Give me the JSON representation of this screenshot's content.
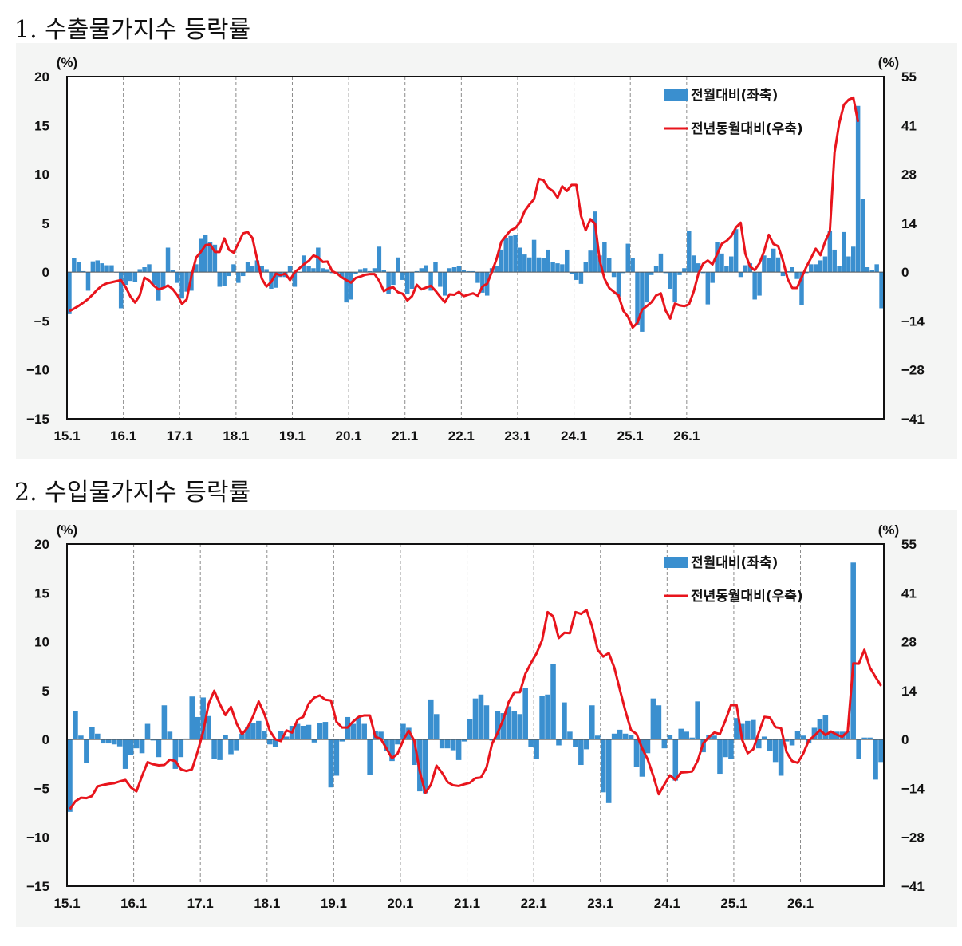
{
  "charts": [
    {
      "title": "1. 수출물가지수 등락률"
    },
    {
      "title": "2. 수입물가지수 등락률"
    }
  ],
  "chart_data": [
    {
      "type": "bar+line",
      "title": "1. 수출물가지수 등락률",
      "left_unit": "(%)",
      "right_unit": "(%)",
      "ylim_left": [
        -15,
        20
      ],
      "ylim_right": [
        -41,
        55
      ],
      "left_ticks": [
        "20",
        "15",
        "10",
        "5",
        "0",
        "-5",
        "-10",
        "-15"
      ],
      "right_ticks": [
        "55",
        "41",
        "28",
        "14",
        "0",
        "-14",
        "-28",
        "-41"
      ],
      "x_ticks": [
        "15.1",
        "16.1",
        "17.1",
        "18.1",
        "19.1",
        "20.1",
        "21.1",
        "22.1",
        "23.1",
        "24.1",
        "25.1",
        "26.1"
      ],
      "grid": "dashed vertical lines at January of each year",
      "legend_position": "top-right",
      "series": [
        {
          "name": "전월대비(좌축)",
          "type": "bar",
          "axis": "left",
          "color": "#3a8fcf",
          "values": [
            -4.3,
            1.4,
            1.0,
            0.1,
            -1.9,
            1.1,
            1.2,
            0.9,
            0.7,
            0.7,
            0,
            -3.7,
            -1.3,
            -0.9,
            -1.0,
            0.3,
            0.5,
            0.8,
            -1.3,
            -2.9,
            -1.6,
            2.5,
            0.2,
            -1.1,
            -2.7,
            -2.0,
            -1.9,
            0.8,
            3.4,
            3.8,
            3.1,
            2.8,
            -1.5,
            -1.4,
            -0.4,
            0.8,
            -1.1,
            -0.4,
            1.0,
            0.6,
            1.2,
            0.6,
            0.3,
            -1.7,
            -1.6,
            -0.5,
            -0.5,
            0.6,
            -1.5,
            0,
            1.7,
            0.6,
            0.4,
            2.5,
            0.4,
            0.3,
            -0.1,
            -0.2,
            -0.5,
            -3.1,
            -2.8,
            -0.2,
            0.3,
            0.4,
            0.1,
            0.4,
            2.6,
            0.2,
            -2.2,
            -1.3,
            1.5,
            -0.8,
            -2.2,
            -1.7,
            0.1,
            0.4,
            0.7,
            -1.9,
            1.0,
            -1.5,
            -2.4,
            0.4,
            0.5,
            0.6,
            0.2,
            0.1,
            0.1,
            -1.1,
            -2.1,
            -2.4,
            0.4,
            0.6,
            2.3,
            3.5,
            3.7,
            3.8,
            2.5,
            1.8,
            1.5,
            3.3,
            1.5,
            1.4,
            2.3,
            1.0,
            0.9,
            0.8,
            2.3,
            -0.2,
            -0.8,
            -1.2,
            1.0,
            2.2,
            6.2,
            1.7,
            3.1,
            1.4,
            -0.5,
            -2.5,
            -0.1,
            2.9,
            1.4,
            -5.4,
            -6.1,
            -3.1,
            -0.3,
            0.6,
            1.9,
            -0.1,
            -1.7,
            -3.1,
            -0.3,
            0.4,
            4.2,
            1.7,
            0.9,
            -0.1,
            -3.3,
            -1.1,
            3.1,
            1.9,
            0.6,
            1.6,
            4.4,
            -0.5,
            0.7,
            0.9,
            -2.8,
            -2.4,
            1.7,
            1.4,
            2.4,
            1.5,
            -0.4,
            0.1,
            0.5,
            -0.7,
            -3.4,
            -0.1,
            0.8,
            0.8,
            1.2,
            1.6,
            4.2,
            2.3,
            0.6,
            4.1,
            1.6,
            2.6,
            17.0,
            7.5,
            0.5,
            0.2,
            0.8,
            -3.7
          ]
        },
        {
          "name": "전년동월대비(우축)",
          "type": "line",
          "axis": "right",
          "color": "#e8141c",
          "values": [
            -10.8,
            -10.1,
            -9.3,
            -8.4,
            -7.4,
            -6.1,
            -4.7,
            -3.6,
            -3.0,
            -2.7,
            -2.4,
            -2.1,
            -4.1,
            -6.7,
            -8.4,
            -6.4,
            -1.4,
            -2.2,
            -3.7,
            -4.7,
            -4.3,
            -3.6,
            -4.6,
            -6.3,
            -8.8,
            -7.5,
            -1.0,
            4.2,
            5.8,
            7.7,
            7.9,
            5.8,
            5.8,
            9.6,
            6.4,
            5.6,
            8.2,
            11.0,
            11.4,
            9.7,
            3.8,
            -1.7,
            -3.9,
            -2.6,
            -0.3,
            -0.7,
            -0.3,
            -2.1,
            0.1,
            1.2,
            2.4,
            3.3,
            4.8,
            4.3,
            3.0,
            3.1,
            0.4,
            -0.2,
            -1.3,
            -2.1,
            -2.8,
            -1.5,
            -1.1,
            -0.6,
            -0.4,
            -0.4,
            -2.3,
            -5.2,
            -4.4,
            -4.1,
            -5.5,
            -5.9,
            -7.8,
            -6.6,
            -3.4,
            -4.7,
            -4.2,
            -3.7,
            -5.1,
            -6.8,
            -8.3,
            -6.1,
            -6.2,
            -5.4,
            -6.6,
            -6.2,
            -5.8,
            -6.5,
            -3.9,
            -3.1,
            0.2,
            3.8,
            8.6,
            10.3,
            11.9,
            12.5,
            14.1,
            17.3,
            19.1,
            20.6,
            26.3,
            25.9,
            23.8,
            22.9,
            21.0,
            24.2,
            22.9,
            24.6,
            24.6,
            15.9,
            11.9,
            15.0,
            13.7,
            3.3,
            -1.7,
            -4.3,
            -5.4,
            -6.4,
            -10.7,
            -12.4,
            -15.4,
            -14.1,
            -10.4,
            -9.4,
            -8.3,
            -6.4,
            -5.8,
            -10.6,
            -12.9,
            -8.7,
            -9.2,
            -9.4,
            -8.9,
            -5.3,
            -0.3,
            2.5,
            3.4,
            2.3,
            5.2,
            8.1,
            8.9,
            10.2,
            12.7,
            14.0,
            5.3,
            1.7,
            0.7,
            2.6,
            6.0,
            10.6,
            8.0,
            7.4,
            3.4,
            -1.7,
            -4.3,
            -4.3,
            -1.3,
            1.6,
            4.1,
            6.7,
            4.9,
            8.7,
            11.6,
            33.7,
            41.9,
            47.1,
            48.5,
            49.1,
            42.3
          ]
        }
      ]
    },
    {
      "type": "bar+line",
      "title": "2. 수입물가지수 등락률",
      "left_unit": "(%)",
      "right_unit": "(%)",
      "ylim_left": [
        -15,
        20
      ],
      "ylim_right": [
        -41,
        55
      ],
      "left_ticks": [
        "20",
        "15",
        "10",
        "5",
        "0",
        "-5",
        "-10",
        "-15"
      ],
      "right_ticks": [
        "55",
        "41",
        "28",
        "14",
        "0",
        "-14",
        "-28",
        "-41"
      ],
      "x_ticks": [
        "15.1",
        "16.1",
        "17.1",
        "18.1",
        "19.1",
        "20.1",
        "21.1",
        "22.1",
        "23.1",
        "24.1",
        "25.1",
        "26.1"
      ],
      "grid": "dashed vertical lines at January of each year",
      "legend_position": "top-right",
      "series": [
        {
          "name": "전월대비(좌축)",
          "type": "bar",
          "axis": "left",
          "color": "#3a8fcf",
          "values": [
            -7.4,
            2.9,
            0.4,
            -2.4,
            1.3,
            0.6,
            -0.4,
            -0.4,
            -0.5,
            -0.7,
            -3.0,
            -1.6,
            -0.9,
            -1.4,
            1.6,
            -0.1,
            -1.8,
            3.5,
            0.8,
            -3.0,
            -1.8,
            0.1,
            4.4,
            2.3,
            4.3,
            2.4,
            -2.0,
            -2.1,
            0.5,
            -1.5,
            -1.1,
            0.6,
            1.3,
            1.7,
            1.9,
            0.9,
            -0.5,
            -0.8,
            0.9,
            0.3,
            1.4,
            1.6,
            1.4,
            1.5,
            -0.3,
            1.7,
            1.8,
            -4.9,
            -3.7,
            -0.2,
            2.3,
            1.6,
            2.3,
            1.6,
            -3.6,
            0.9,
            0.8,
            -1.2,
            -2.2,
            -0.5,
            1.6,
            1.2,
            -2.6,
            -5.3,
            -5.5,
            4.1,
            2.6,
            -0.9,
            -0.9,
            -1.1,
            -2.1,
            -0.2,
            2.1,
            4.2,
            4.6,
            3.5,
            -0.1,
            2.9,
            2.7,
            3.4,
            2.9,
            2.6,
            5.3,
            -0.8,
            -2.0,
            4.5,
            4.6,
            7.7,
            -0.6,
            3.8,
            0.8,
            -0.8,
            -2.6,
            -1.0,
            3.5,
            0.4,
            -5.4,
            -6.5,
            0.6,
            1.0,
            0.6,
            0.5,
            -2.8,
            -3.8,
            -1.4,
            4.2,
            3.5,
            -0.9,
            0.5,
            -4.2,
            1.1,
            0.8,
            0.2,
            3.9,
            -1.3,
            0.5,
            0.4,
            -3.5,
            -1.8,
            -2.0,
            2.2,
            1.6,
            1.9,
            2.0,
            -0.9,
            0.3,
            -1.2,
            -2.3,
            -3.7,
            -0.2,
            -0.6,
            0.9,
            0.4,
            -0.4,
            1.2,
            2.1,
            2.5,
            0.8,
            0.8,
            0.8,
            0.9,
            18.1,
            -2.0,
            0.2,
            0.2,
            -4.1,
            -2.3
          ]
        },
        {
          "name": "전년동월대비(우축)",
          "type": "line",
          "axis": "right",
          "color": "#e8141c",
          "values": [
            -19.4,
            -17.2,
            -16.2,
            -16.3,
            -15.7,
            -13.0,
            -12.6,
            -12.3,
            -12.1,
            -11.6,
            -11.2,
            -13.3,
            -14.4,
            -10.1,
            -6.2,
            -6.8,
            -7.1,
            -7.0,
            -5.5,
            -5.9,
            -8.2,
            -8.7,
            -8.2,
            -3.3,
            2.3,
            10.2,
            13.8,
            10.1,
            7.0,
            9.3,
            4.7,
            1.6,
            3.5,
            6.7,
            10.8,
            7.4,
            2.6,
            0.2,
            -0.3,
            2.7,
            2.1,
            5.7,
            6.5,
            10.2,
            11.9,
            12.5,
            11.3,
            11.1,
            5.1,
            3.5,
            3.5,
            5.2,
            6.5,
            6.9,
            6.9,
            0.9,
            0.3,
            -2.4,
            -5.1,
            -3.8,
            -0.1,
            2.6,
            -0.2,
            -8.9,
            -14.8,
            -12.5,
            -7.2,
            -9.2,
            -11.8,
            -12.7,
            -12.9,
            -12.4,
            -12.0,
            -10.7,
            -10.5,
            -7.7,
            -1.0,
            2.0,
            5.7,
            10.7,
            13.4,
            13.4,
            18.6,
            21.6,
            24.3,
            28.0,
            35.9,
            34.7,
            28.6,
            30.1,
            30.0,
            35.9,
            35.4,
            36.5,
            31.9,
            25.3,
            23.4,
            24.4,
            20.3,
            14.1,
            8.1,
            2.8,
            1.7,
            -2.3,
            -5.4,
            -10.0,
            -15.2,
            -12.5,
            -9.9,
            -11.2,
            -9.1,
            -9.0,
            -8.8,
            -5.8,
            -0.9,
            0.8,
            2.1,
            1.7,
            5.5,
            9.8,
            9.8,
            0.1,
            -3.7,
            -2.6,
            2.1,
            6.5,
            6.3,
            3.6,
            3.3,
            -3.4,
            -5.9,
            -6.4,
            -3.8,
            -0.1,
            1.2,
            2.8,
            1.4,
            2.4,
            1.5,
            0.9,
            2.4,
            21.5,
            21.4,
            25.3,
            20.3,
            17.7,
            15.2
          ]
        }
      ]
    }
  ]
}
